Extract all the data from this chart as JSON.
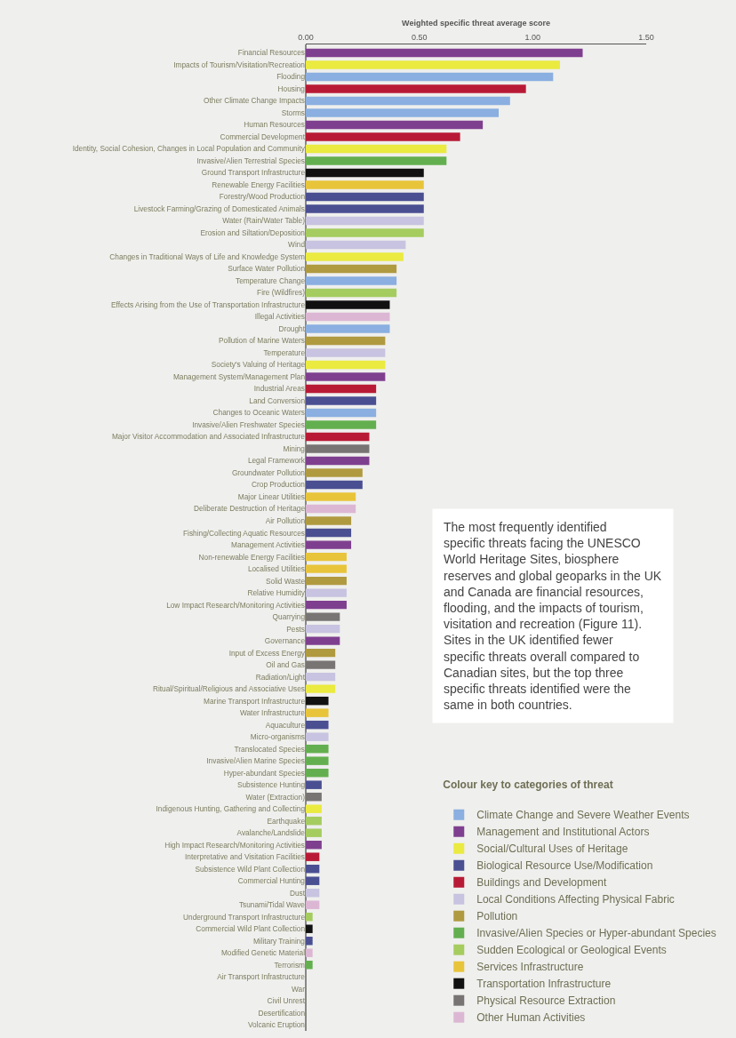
{
  "chart_data": {
    "type": "bar",
    "orientation": "horizontal",
    "stacked": true,
    "xlabel": "Weighted specific threat average score",
    "xlim": [
      0,
      1.5
    ],
    "xticks": [
      {
        "value": 0,
        "label": "0.00"
      },
      {
        "value": 0.5,
        "label": "0.50"
      },
      {
        "value": 1,
        "label": "1.00"
      },
      {
        "value": 1.5,
        "label": "1.50"
      }
    ],
    "grid": false,
    "legend": "bottom right",
    "legend_title": "Colour key to categories of threat",
    "categories": [
      "Financial Resources",
      "Impacts of Tourism/Visitation/Recreation",
      "Flooding",
      "Housing",
      "Other Climate Change Impacts",
      "Storms",
      "Human Resources",
      "Commercial Development",
      "Identity, Social Cohesion, Changes in Local Population and Community",
      "Invasive/Alien Terrestrial Species",
      "Ground Transport Infrastructure",
      "Renewable Energy Facilities",
      "Forestry/Wood Production",
      "Livestock Farming/Grazing of Domesticated Animals",
      "Water (Rain/Water Table)",
      "Erosion and Siltation/Deposition",
      "Wind",
      "Changes in Traditional Ways of Life and Knowledge System",
      "Surface Water Pollution",
      "Temperature Change",
      "Fire (Wildfires)",
      "Effects Arising from the Use of Transportation Infrastructure",
      "Illegal Activities",
      "Drought",
      "Pollution of Marine Waters",
      "Temperature",
      "Society's Valuing of Heritage",
      "Management System/Management Plan",
      "Industrial Areas",
      "Land Conversion",
      "Changes to Oceanic Waters",
      "Invasive/Alien Freshwater Species",
      "Major Visitor Accommodation and Associated Infrastructure",
      "Mining",
      "Legal Framework",
      "Groundwater Pollution",
      "Crop Production",
      "Major Linear Utilities",
      "Deliberate Destruction of Heritage",
      "Air Pollution",
      "Fishing/Collecting Aquatic Resources",
      "Management Activities",
      "Non-renewable Energy Facilities",
      "Localised Utilities",
      "Solid Waste",
      "Relative Humidity",
      "Low Impact Research/Monitoring Activities",
      "Quarrying",
      "Pests",
      "Governance",
      "Input of Excess Energy",
      "Oil and Gas",
      "Radiation/Light",
      "Ritual/Spiritual/Religious and Associative Uses",
      "Marine Transport Infrastructure",
      "Water Infrastructure",
      "Aquaculture",
      "Micro-organisms",
      "Translocated Species",
      "Invasive/Alien Marine Species",
      "Hyper-abundant Species",
      "Subsistence Hunting",
      "Water (Extraction)",
      "Indigenous Hunting, Gathering and Collecting",
      "Earthquake",
      "Avalanche/Landslide",
      "High Impact Research/Monitoring Activities",
      "Interpretative and Visitation Facilities",
      "Subsistence Wild Plant Collection",
      "Commercial Hunting",
      "Dust",
      "Tsunami/Tidal Wave",
      "Underground Transport Infrastructure",
      "Commercial Wild Plant Collection",
      "Military Training",
      "Modified Genetic Material",
      "Terrorism",
      "Air Transport Infrastructure",
      "War",
      "Civil Unrest",
      "Desertification",
      "Volcanic Eruption"
    ],
    "series": [
      {
        "name": "Climate Change and Severe Weather Events",
        "color": "#8aafe0",
        "values": [
          null,
          null,
          1.09,
          null,
          0.9,
          0.85,
          null,
          null,
          null,
          null,
          null,
          null,
          null,
          null,
          null,
          null,
          null,
          null,
          null,
          0.4,
          null,
          null,
          null,
          0.37,
          null,
          null,
          null,
          null,
          null,
          null,
          0.31,
          null,
          null,
          null,
          null,
          null,
          null,
          null,
          null,
          null,
          null,
          null,
          null,
          null,
          null,
          null,
          null,
          null,
          null,
          null,
          null,
          null,
          null,
          null,
          null,
          null,
          null,
          null,
          null,
          null,
          null,
          null,
          null,
          null,
          null,
          null,
          null,
          null,
          null,
          null,
          null,
          null,
          null,
          null,
          null,
          null,
          null,
          null,
          null,
          null,
          0,
          null
        ]
      },
      {
        "name": "Management and Institutional Actors",
        "color": "#7f3f8f",
        "values": [
          1.22,
          null,
          null,
          null,
          null,
          null,
          0.78,
          null,
          null,
          null,
          null,
          null,
          null,
          null,
          null,
          null,
          null,
          null,
          null,
          null,
          null,
          null,
          null,
          null,
          null,
          null,
          null,
          0.35,
          null,
          null,
          null,
          null,
          null,
          null,
          0.28,
          null,
          null,
          null,
          null,
          null,
          null,
          0.2,
          null,
          null,
          null,
          null,
          0.18,
          null,
          null,
          0.15,
          null,
          null,
          null,
          null,
          null,
          null,
          null,
          null,
          null,
          null,
          null,
          null,
          null,
          null,
          null,
          null,
          0.07,
          null,
          null,
          null,
          null,
          null,
          null,
          null,
          null,
          null,
          null,
          null,
          null,
          null,
          null,
          null
        ]
      },
      {
        "name": "Social/Cultural Uses of Heritage",
        "color": "#eaea40",
        "values": [
          null,
          1.12,
          null,
          null,
          null,
          null,
          null,
          null,
          0.62,
          null,
          null,
          null,
          null,
          null,
          null,
          null,
          null,
          0.43,
          null,
          null,
          null,
          null,
          null,
          null,
          null,
          null,
          0.35,
          null,
          null,
          null,
          null,
          null,
          null,
          null,
          null,
          null,
          null,
          null,
          null,
          null,
          null,
          null,
          null,
          null,
          null,
          null,
          null,
          null,
          null,
          null,
          null,
          null,
          null,
          0.13,
          null,
          null,
          null,
          null,
          null,
          null,
          null,
          null,
          null,
          0.07,
          null,
          null,
          null,
          null,
          null,
          null,
          null,
          null,
          null,
          null,
          null,
          null,
          null,
          null,
          null,
          null,
          null,
          null
        ]
      },
      {
        "name": "Biological Resource Use/Modification",
        "color": "#4a4f92",
        "values": [
          null,
          null,
          null,
          null,
          null,
          null,
          null,
          null,
          null,
          null,
          null,
          null,
          0.52,
          0.52,
          null,
          null,
          null,
          null,
          null,
          null,
          null,
          null,
          null,
          null,
          null,
          null,
          null,
          null,
          null,
          0.31,
          null,
          null,
          null,
          null,
          null,
          null,
          0.25,
          null,
          null,
          null,
          0.2,
          null,
          null,
          null,
          null,
          null,
          null,
          null,
          null,
          null,
          null,
          null,
          null,
          null,
          null,
          null,
          0.1,
          null,
          null,
          null,
          null,
          0.07,
          null,
          null,
          null,
          null,
          null,
          null,
          0.06,
          0.06,
          null,
          null,
          null,
          null,
          0.03,
          null,
          null,
          null,
          null,
          null,
          null,
          null
        ]
      },
      {
        "name": "Buildings and Development",
        "color": "#b81a35",
        "values": [
          null,
          null,
          null,
          0.97,
          null,
          null,
          null,
          0.68,
          null,
          null,
          null,
          null,
          null,
          null,
          null,
          null,
          null,
          null,
          null,
          null,
          null,
          null,
          null,
          null,
          null,
          null,
          null,
          null,
          0.31,
          null,
          null,
          null,
          0.28,
          null,
          null,
          null,
          null,
          null,
          null,
          null,
          null,
          null,
          null,
          null,
          null,
          null,
          null,
          null,
          null,
          null,
          null,
          null,
          null,
          null,
          null,
          null,
          null,
          null,
          null,
          null,
          null,
          null,
          null,
          null,
          null,
          null,
          null,
          0.06,
          null,
          null,
          null,
          null,
          null,
          null,
          null,
          null,
          null,
          null,
          null,
          null,
          null,
          null
        ]
      },
      {
        "name": "Local Conditions Affecting Physical Fabric",
        "color": "#c7c3e0",
        "values": [
          null,
          null,
          null,
          null,
          null,
          null,
          null,
          null,
          null,
          null,
          null,
          null,
          null,
          null,
          0.52,
          null,
          0.44,
          null,
          null,
          null,
          null,
          null,
          null,
          null,
          null,
          0.35,
          null,
          null,
          null,
          null,
          null,
          null,
          null,
          null,
          null,
          null,
          null,
          null,
          null,
          null,
          null,
          null,
          null,
          null,
          null,
          0.18,
          null,
          null,
          0.15,
          null,
          null,
          null,
          0.13,
          null,
          null,
          null,
          null,
          0.1,
          null,
          null,
          null,
          null,
          null,
          null,
          null,
          null,
          null,
          null,
          null,
          null,
          0.06,
          null,
          null,
          null,
          null,
          null,
          null,
          null,
          null,
          null,
          null,
          null
        ]
      },
      {
        "name": "Pollution",
        "color": "#b09a40",
        "values": [
          null,
          null,
          null,
          null,
          null,
          null,
          null,
          null,
          null,
          null,
          null,
          null,
          null,
          null,
          null,
          null,
          null,
          null,
          0.4,
          null,
          null,
          null,
          null,
          null,
          0.35,
          null,
          null,
          null,
          null,
          null,
          null,
          null,
          null,
          null,
          null,
          0.25,
          null,
          null,
          null,
          0.2,
          null,
          null,
          null,
          null,
          0.18,
          null,
          null,
          null,
          null,
          null,
          0.13,
          null,
          null,
          null,
          null,
          null,
          null,
          null,
          null,
          null,
          null,
          null,
          null,
          null,
          null,
          null,
          null,
          null,
          null,
          null,
          null,
          null,
          null,
          null,
          null,
          null,
          null,
          null,
          null,
          null,
          null,
          null
        ]
      },
      {
        "name": "Invasive/Alien Species or Hyper-abundant Species",
        "color": "#63af4f",
        "values": [
          null,
          null,
          null,
          null,
          null,
          null,
          null,
          null,
          null,
          0.62,
          null,
          null,
          null,
          null,
          null,
          null,
          null,
          null,
          null,
          null,
          null,
          null,
          null,
          null,
          null,
          null,
          null,
          null,
          null,
          null,
          null,
          0.31,
          null,
          null,
          null,
          null,
          null,
          null,
          null,
          null,
          null,
          null,
          null,
          null,
          null,
          null,
          null,
          null,
          null,
          null,
          null,
          null,
          null,
          null,
          null,
          null,
          null,
          null,
          0.1,
          0.1,
          0.1,
          null,
          null,
          null,
          null,
          null,
          null,
          null,
          null,
          null,
          null,
          null,
          null,
          null,
          null,
          null,
          0.03,
          null,
          null,
          null,
          null,
          null
        ]
      },
      {
        "name": "Sudden Ecological or Geological Events",
        "color": "#a5cc5f",
        "values": [
          null,
          null,
          null,
          null,
          null,
          null,
          null,
          null,
          null,
          null,
          null,
          null,
          null,
          null,
          null,
          0.52,
          null,
          null,
          null,
          null,
          0.4,
          null,
          null,
          null,
          null,
          null,
          null,
          null,
          null,
          null,
          null,
          null,
          null,
          null,
          null,
          null,
          null,
          null,
          null,
          null,
          null,
          null,
          null,
          null,
          null,
          null,
          null,
          null,
          null,
          null,
          null,
          null,
          null,
          null,
          null,
          null,
          null,
          null,
          null,
          null,
          null,
          null,
          null,
          null,
          0.07,
          0.07,
          null,
          null,
          null,
          null,
          null,
          null,
          0.03,
          null,
          null,
          null,
          null,
          null,
          null,
          null,
          null,
          0
        ]
      },
      {
        "name": "Services Infrastructure",
        "color": "#e8c43a",
        "values": [
          null,
          null,
          null,
          null,
          null,
          null,
          null,
          null,
          null,
          null,
          null,
          0.52,
          null,
          null,
          null,
          null,
          null,
          null,
          null,
          null,
          null,
          null,
          null,
          null,
          null,
          null,
          null,
          null,
          null,
          null,
          null,
          null,
          null,
          null,
          null,
          null,
          null,
          0.22,
          null,
          null,
          null,
          null,
          0.18,
          0.18,
          null,
          null,
          null,
          null,
          null,
          null,
          null,
          null,
          null,
          null,
          null,
          0.1,
          null,
          null,
          null,
          null,
          null,
          null,
          null,
          null,
          null,
          null,
          null,
          null,
          null,
          null,
          null,
          null,
          null,
          null,
          null,
          null,
          null,
          null,
          null,
          null,
          null,
          null
        ]
      },
      {
        "name": "Transportation Infrastructure",
        "color": "#111111",
        "values": [
          null,
          null,
          null,
          null,
          null,
          null,
          null,
          null,
          null,
          null,
          0.52,
          null,
          null,
          null,
          null,
          null,
          null,
          null,
          null,
          null,
          null,
          0.37,
          null,
          null,
          null,
          null,
          null,
          null,
          null,
          null,
          null,
          null,
          null,
          null,
          null,
          null,
          null,
          null,
          null,
          null,
          null,
          null,
          null,
          null,
          null,
          null,
          null,
          null,
          null,
          null,
          null,
          null,
          null,
          null,
          0.1,
          null,
          null,
          null,
          null,
          null,
          null,
          null,
          null,
          null,
          null,
          null,
          null,
          null,
          null,
          null,
          null,
          null,
          null,
          0.03,
          null,
          null,
          null,
          0,
          null,
          null,
          null,
          null
        ]
      },
      {
        "name": "Physical Resource Extraction",
        "color": "#787474",
        "values": [
          null,
          null,
          null,
          null,
          null,
          null,
          null,
          null,
          null,
          null,
          null,
          null,
          null,
          null,
          null,
          null,
          null,
          null,
          null,
          null,
          null,
          null,
          null,
          null,
          null,
          null,
          null,
          null,
          null,
          null,
          null,
          null,
          null,
          0.28,
          null,
          null,
          null,
          null,
          null,
          null,
          null,
          null,
          null,
          null,
          null,
          null,
          null,
          0.15,
          null,
          null,
          null,
          0.13,
          null,
          null,
          null,
          null,
          null,
          null,
          null,
          null,
          null,
          null,
          0.07,
          null,
          null,
          null,
          null,
          null,
          null,
          null,
          null,
          null,
          null,
          null,
          null,
          null,
          null,
          null,
          null,
          null,
          null,
          null
        ]
      },
      {
        "name": "Other Human Activities",
        "color": "#dcb7d4",
        "values": [
          null,
          null,
          null,
          null,
          null,
          null,
          null,
          null,
          null,
          null,
          null,
          null,
          null,
          null,
          null,
          null,
          null,
          null,
          null,
          null,
          null,
          null,
          0.37,
          null,
          null,
          null,
          null,
          null,
          null,
          null,
          null,
          null,
          null,
          null,
          null,
          null,
          null,
          null,
          0.22,
          null,
          null,
          null,
          null,
          null,
          null,
          null,
          null,
          null,
          null,
          null,
          null,
          null,
          null,
          null,
          null,
          null,
          null,
          null,
          null,
          null,
          null,
          null,
          null,
          null,
          null,
          null,
          null,
          null,
          null,
          null,
          null,
          0.06,
          null,
          null,
          null,
          0.03,
          null,
          null,
          0,
          0,
          null,
          null
        ]
      }
    ],
    "annotations": [
      "The most frequently identified specific threats facing the UNESCO World Heritage Sites, biosphere reserves and global geoparks in the UK and Canada are financial resources, flooding, and the impacts of tourism, visitation and recreation (Figure 11). Sites in the UK identified fewer specific threats overall compared to Canadian sites, but the top three specific threats identified were the same in both countries."
    ]
  }
}
